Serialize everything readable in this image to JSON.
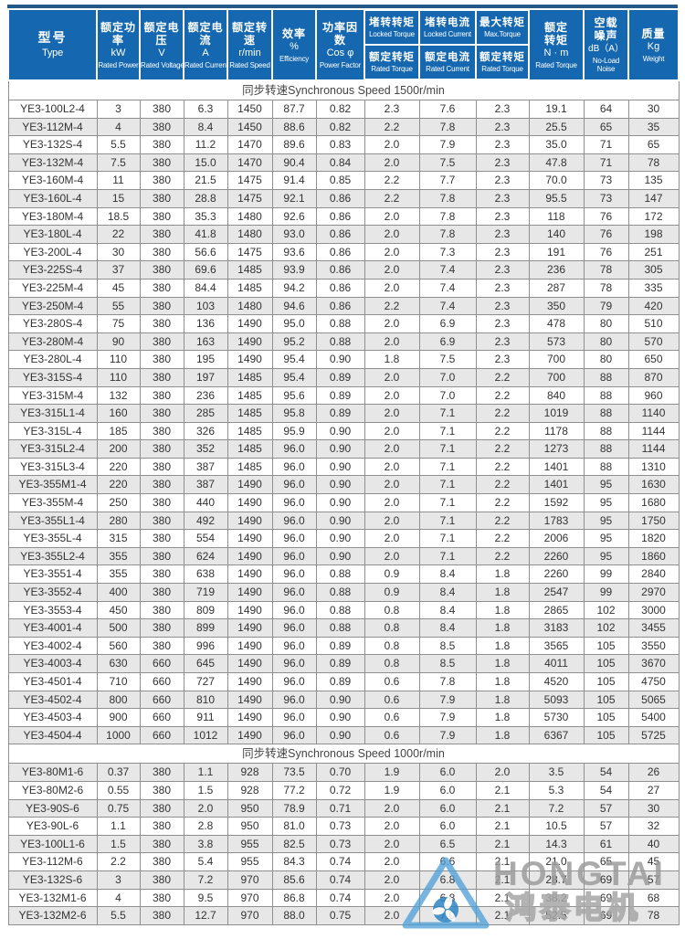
{
  "table": {
    "header": {
      "c1": {
        "zh": "型号",
        "en": "Type"
      },
      "c2": {
        "zh": "额定功率",
        "unit": "kW",
        "en": "Rated Power"
      },
      "c3": {
        "zh": "额定电压",
        "unit": "V",
        "en": "Rated Voltage"
      },
      "c4": {
        "zh": "额定电流",
        "unit": "A",
        "en": "Rated Current"
      },
      "c5": {
        "zh": "额定转速",
        "unit": "r/min",
        "en": "Rated Speed"
      },
      "c6": {
        "zh": "效率",
        "unit": "%",
        "en": "Efficiency"
      },
      "c7": {
        "zh": "功率因数",
        "unit": "Cos φ",
        "en": "Power Factor"
      },
      "c8": {
        "top_zh": "堵转转矩",
        "top_en": "Locked Torque",
        "bot_zh": "额定转矩",
        "bot_en": "Rated Torque"
      },
      "c9": {
        "top_zh": "堵转电流",
        "top_en": "Locked Current",
        "bot_zh": "额定电流",
        "bot_en": "Rated Current"
      },
      "c10": {
        "top_zh": "最大转矩",
        "top_en": "Max.Torque",
        "bot_zh": "额定转矩",
        "bot_en": "Rated Torque"
      },
      "c11": {
        "zh1": "额定",
        "zh2": "转矩",
        "unit": "N · m",
        "en": "Rated Torque"
      },
      "c12": {
        "zh1": "空载",
        "zh2": "噪声",
        "unit": "dB（A）",
        "en1": "No-Load",
        "en2": "Noise"
      },
      "c13": {
        "zh": "质量",
        "unit": "Kg",
        "en": "Weight"
      }
    },
    "sections": [
      {
        "title": "同步转速Synchronous Speed  1500r/min",
        "rows": [
          [
            "YE3-100L2-4",
            "3",
            "380",
            "6.3",
            "1450",
            "87.7",
            "0.82",
            "2.3",
            "7.6",
            "2.3",
            "19.1",
            "64",
            "30"
          ],
          [
            "YE3-112M-4",
            "4",
            "380",
            "8.4",
            "1450",
            "88.6",
            "0.82",
            "2.2",
            "7.8",
            "2.3",
            "25.5",
            "65",
            "35"
          ],
          [
            "YE3-132S-4",
            "5.5",
            "380",
            "11.2",
            "1470",
            "89.6",
            "0.83",
            "2.0",
            "7.9",
            "2.3",
            "35.0",
            "71",
            "65"
          ],
          [
            "YE3-132M-4",
            "7.5",
            "380",
            "15.0",
            "1470",
            "90.4",
            "0.84",
            "2.0",
            "7.5",
            "2.3",
            "47.8",
            "71",
            "78"
          ],
          [
            "YE3-160M-4",
            "11",
            "380",
            "21.5",
            "1475",
            "91.4",
            "0.85",
            "2.2",
            "7.7",
            "2.3",
            "70.0",
            "73",
            "135"
          ],
          [
            "YE3-160L-4",
            "15",
            "380",
            "28.8",
            "1475",
            "92.1",
            "0.86",
            "2.2",
            "7.8",
            "2.3",
            "95.5",
            "73",
            "147"
          ],
          [
            "YE3-180M-4",
            "18.5",
            "380",
            "35.3",
            "1480",
            "92.6",
            "0.86",
            "2.0",
            "7.8",
            "2.3",
            "118",
            "76",
            "172"
          ],
          [
            "YE3-180L-4",
            "22",
            "380",
            "41.8",
            "1480",
            "93.0",
            "0.86",
            "2.0",
            "7.8",
            "2.3",
            "140",
            "76",
            "198"
          ],
          [
            "YE3-200L-4",
            "30",
            "380",
            "56.6",
            "1475",
            "93.6",
            "0.86",
            "2.0",
            "7.3",
            "2.3",
            "191",
            "76",
            "251"
          ],
          [
            "YE3-225S-4",
            "37",
            "380",
            "69.6",
            "1485",
            "93.9",
            "0.86",
            "2.0",
            "7.4",
            "2.3",
            "236",
            "78",
            "305"
          ],
          [
            "YE3-225M-4",
            "45",
            "380",
            "84.4",
            "1485",
            "94.2",
            "0.86",
            "2.0",
            "7.4",
            "2.3",
            "287",
            "78",
            "335"
          ],
          [
            "YE3-250M-4",
            "55",
            "380",
            "103",
            "1480",
            "94.6",
            "0.86",
            "2.2",
            "7.4",
            "2.3",
            "350",
            "79",
            "420"
          ],
          [
            "YE3-280S-4",
            "75",
            "380",
            "136",
            "1490",
            "95.0",
            "0.88",
            "2.0",
            "6.9",
            "2.3",
            "478",
            "80",
            "510"
          ],
          [
            "YE3-280M-4",
            "90",
            "380",
            "163",
            "1490",
            "95.2",
            "0.88",
            "2.0",
            "6.9",
            "2.3",
            "573",
            "80",
            "570"
          ],
          [
            "YE3-280L-4",
            "110",
            "380",
            "195",
            "1490",
            "95.4",
            "0.90",
            "1.8",
            "7.5",
            "2.3",
            "700",
            "80",
            "650"
          ],
          [
            "YE3-315S-4",
            "110",
            "380",
            "197",
            "1485",
            "95.4",
            "0.89",
            "2.0",
            "7.0",
            "2.2",
            "700",
            "88",
            "870"
          ],
          [
            "YE3-315M-4",
            "132",
            "380",
            "236",
            "1485",
            "95.6",
            "0.89",
            "2.0",
            "7.0",
            "2.2",
            "840",
            "88",
            "960"
          ],
          [
            "YE3-315L1-4",
            "160",
            "380",
            "285",
            "1485",
            "95.8",
            "0.89",
            "2.0",
            "7.1",
            "2.2",
            "1019",
            "88",
            "1140"
          ],
          [
            "YE3-315L-4",
            "185",
            "380",
            "326",
            "1485",
            "95.9",
            "0.90",
            "2.0",
            "7.1",
            "2.2",
            "1178",
            "88",
            "1144"
          ],
          [
            "YE3-315L2-4",
            "200",
            "380",
            "352",
            "1485",
            "96.0",
            "0.90",
            "2.0",
            "7.1",
            "2.2",
            "1273",
            "88",
            "1144"
          ],
          [
            "YE3-315L3-4",
            "220",
            "380",
            "387",
            "1485",
            "96.0",
            "0.90",
            "2.0",
            "7.1",
            "2.2",
            "1401",
            "88",
            "1310"
          ],
          [
            "YE3-355M1-4",
            "220",
            "380",
            "387",
            "1490",
            "96.0",
            "0.90",
            "2.0",
            "7.1",
            "2.2",
            "1401",
            "95",
            "1630"
          ],
          [
            "YE3-355M-4",
            "250",
            "380",
            "440",
            "1490",
            "96.0",
            "0.90",
            "2.0",
            "7.1",
            "2.2",
            "1592",
            "95",
            "1680"
          ],
          [
            "YE3-355L1-4",
            "280",
            "380",
            "492",
            "1490",
            "96.0",
            "0.90",
            "2.0",
            "7.1",
            "2.2",
            "1783",
            "95",
            "1750"
          ],
          [
            "YE3-355L-4",
            "315",
            "380",
            "554",
            "1490",
            "96.0",
            "0.90",
            "2.0",
            "7.1",
            "2.2",
            "2006",
            "95",
            "1820"
          ],
          [
            "YE3-355L2-4",
            "355",
            "380",
            "624",
            "1490",
            "96.0",
            "0.90",
            "2.0",
            "7.1",
            "2.2",
            "2260",
            "95",
            "1860"
          ],
          [
            "YE3-3551-4",
            "355",
            "380",
            "638",
            "1490",
            "96.0",
            "0.88",
            "0.9",
            "8.4",
            "1.8",
            "2260",
            "99",
            "2840"
          ],
          [
            "YE3-3552-4",
            "400",
            "380",
            "719",
            "1490",
            "96.0",
            "0.88",
            "0.9",
            "8.4",
            "1.8",
            "2547",
            "99",
            "2970"
          ],
          [
            "YE3-3553-4",
            "450",
            "380",
            "809",
            "1490",
            "96.0",
            "0.88",
            "0.8",
            "8.4",
            "1.8",
            "2865",
            "102",
            "3000"
          ],
          [
            "YE3-4001-4",
            "500",
            "380",
            "899",
            "1490",
            "96.0",
            "0.88",
            "0.8",
            "8.4",
            "1.8",
            "3183",
            "102",
            "3455"
          ],
          [
            "YE3-4002-4",
            "560",
            "380",
            "996",
            "1490",
            "96.0",
            "0.89",
            "0.8",
            "8.5",
            "1.8",
            "3565",
            "105",
            "3550"
          ],
          [
            "YE3-4003-4",
            "630",
            "660",
            "645",
            "1490",
            "96.0",
            "0.89",
            "0.8",
            "8.5",
            "1.8",
            "4011",
            "105",
            "3670"
          ],
          [
            "YE3-4501-4",
            "710",
            "660",
            "727",
            "1490",
            "96.0",
            "0.89",
            "0.6",
            "7.8",
            "1.8",
            "4520",
            "105",
            "4750"
          ],
          [
            "YE3-4502-4",
            "800",
            "660",
            "810",
            "1490",
            "96.0",
            "0.90",
            "0.6",
            "7.9",
            "1.8",
            "5093",
            "105",
            "5065"
          ],
          [
            "YE3-4503-4",
            "900",
            "660",
            "911",
            "1490",
            "96.0",
            "0.90",
            "0.6",
            "7.9",
            "1.8",
            "5730",
            "105",
            "5400"
          ],
          [
            "YE3-4504-4",
            "1000",
            "660",
            "1012",
            "1490",
            "96.0",
            "0.90",
            "0.6",
            "7.9",
            "1.8",
            "6367",
            "105",
            "5725"
          ]
        ]
      },
      {
        "title": "同步转速Synchronous Speed  1000r/min",
        "rows": [
          [
            "YE3-80M1-6",
            "0.37",
            "380",
            "1.1",
            "928",
            "73.5",
            "0.70",
            "1.9",
            "6.0",
            "2.0",
            "3.5",
            "54",
            "26"
          ],
          [
            "YE3-80M2-6",
            "0.55",
            "380",
            "1.5",
            "928",
            "77.2",
            "0.72",
            "1.9",
            "6.0",
            "2.1",
            "5.3",
            "54",
            "27"
          ],
          [
            "YE3-90S-6",
            "0.75",
            "380",
            "2.0",
            "950",
            "78.9",
            "0.71",
            "2.0",
            "6.0",
            "2.1",
            "7.2",
            "57",
            "30"
          ],
          [
            "YE3-90L-6",
            "1.1",
            "380",
            "2.8",
            "950",
            "81.0",
            "0.73",
            "2.0",
            "6.0",
            "2.1",
            "10.5",
            "57",
            "32"
          ],
          [
            "YE3-100L1-6",
            "1.5",
            "380",
            "3.8",
            "955",
            "82.5",
            "0.73",
            "2.0",
            "6.5",
            "2.1",
            "14.3",
            "61",
            "40"
          ],
          [
            "YE3-112M-6",
            "2.2",
            "380",
            "5.4",
            "955",
            "84.3",
            "0.74",
            "2.0",
            "6.6",
            "2.1",
            "21.0",
            "65",
            "45"
          ],
          [
            "YE3-132S-6",
            "3",
            "380",
            "7.2",
            "970",
            "85.6",
            "0.74",
            "2.0",
            "6.8",
            "2.1",
            "28.7",
            "69",
            "57"
          ],
          [
            "YE3-132M1-6",
            "4",
            "380",
            "9.5",
            "970",
            "86.8",
            "0.74",
            "2.0",
            "6.8",
            "2.1",
            "38.2",
            "69",
            "68"
          ],
          [
            "YE3-132M2-6",
            "5.5",
            "380",
            "12.7",
            "970",
            "88.0",
            "0.75",
            "2.0",
            "7.0",
            "2.1",
            "52.5",
            "69",
            "78"
          ]
        ]
      }
    ]
  },
  "watermark": {
    "brand_en": "HONGTAI",
    "brand_cn": "鸿泰电机"
  },
  "colors": {
    "header_blue": "#1568b0",
    "top_strip_navy": "#24588b",
    "stripe_gray": "#e7e7e7",
    "border_gray": "#8f8f8f",
    "logo_blue": "#4fa0d8"
  }
}
